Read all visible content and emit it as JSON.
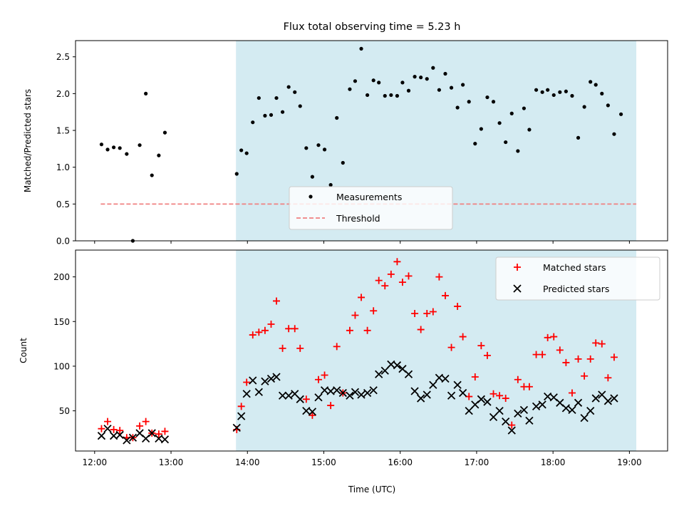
{
  "chart_data": {
    "title": "Flux total observing time = 5.23 h",
    "xlabel": "Time (UTC)",
    "x_ticks": [
      "12:00",
      "13:00",
      "14:00",
      "15:00",
      "16:00",
      "17:00",
      "18:00",
      "19:00"
    ],
    "x_tick_hours": [
      12,
      13,
      14,
      15,
      16,
      17,
      18,
      19
    ],
    "x_range_hours": [
      11.75,
      19.5
    ],
    "observing_window_hours": [
      13.85,
      19.09
    ],
    "shade_color": "#d4ebf2",
    "panels": [
      {
        "type": "scatter",
        "ylabel": "Matched/Predicted stars",
        "ylim": [
          0,
          2.72
        ],
        "y_ticks": [
          "0.0",
          "0.5",
          "1.0",
          "1.5",
          "2.0",
          "2.5"
        ],
        "y_tick_values": [
          0,
          0.5,
          1.0,
          1.5,
          2.0,
          2.5
        ],
        "legend": {
          "position": "lower-center",
          "entries": [
            "Measurements",
            "Threshold"
          ]
        },
        "series": [
          {
            "name": "Measurements",
            "marker": "dot",
            "color": "#000000",
            "points": [
              [
                12.09,
                1.31
              ],
              [
                12.17,
                1.24
              ],
              [
                12.25,
                1.27
              ],
              [
                12.33,
                1.26
              ],
              [
                12.42,
                1.18
              ],
              [
                12.5,
                0.0
              ],
              [
                12.59,
                1.3
              ],
              [
                12.67,
                2.0
              ],
              [
                12.75,
                0.89
              ],
              [
                12.84,
                1.16
              ],
              [
                12.92,
                1.47
              ],
              [
                13.86,
                0.91
              ],
              [
                13.92,
                1.23
              ],
              [
                13.99,
                1.19
              ],
              [
                14.07,
                1.61
              ],
              [
                14.15,
                1.94
              ],
              [
                14.23,
                1.7
              ],
              [
                14.31,
                1.71
              ],
              [
                14.38,
                1.94
              ],
              [
                14.46,
                1.75
              ],
              [
                14.54,
                2.09
              ],
              [
                14.62,
                2.02
              ],
              [
                14.69,
                1.83
              ],
              [
                14.77,
                1.26
              ],
              [
                14.85,
                0.87
              ],
              [
                14.93,
                1.3
              ],
              [
                15.01,
                1.24
              ],
              [
                15.09,
                0.76
              ],
              [
                15.17,
                1.67
              ],
              [
                15.25,
                1.06
              ],
              [
                15.34,
                2.06
              ],
              [
                15.41,
                2.17
              ],
              [
                15.49,
                2.61
              ],
              [
                15.57,
                1.98
              ],
              [
                15.65,
                2.18
              ],
              [
                15.72,
                2.15
              ],
              [
                15.8,
                1.97
              ],
              [
                15.88,
                1.98
              ],
              [
                15.96,
                1.97
              ],
              [
                16.03,
                2.15
              ],
              [
                16.11,
                2.04
              ],
              [
                16.19,
                2.23
              ],
              [
                16.27,
                2.22
              ],
              [
                16.35,
                2.2
              ],
              [
                16.43,
                2.35
              ],
              [
                16.51,
                2.05
              ],
              [
                16.59,
                2.27
              ],
              [
                16.67,
                2.08
              ],
              [
                16.75,
                1.81
              ],
              [
                16.82,
                2.12
              ],
              [
                16.9,
                1.89
              ],
              [
                16.98,
                1.32
              ],
              [
                17.06,
                1.52
              ],
              [
                17.14,
                1.95
              ],
              [
                17.22,
                1.89
              ],
              [
                17.3,
                1.6
              ],
              [
                17.38,
                1.34
              ],
              [
                17.46,
                1.73
              ],
              [
                17.54,
                1.22
              ],
              [
                17.62,
                1.8
              ],
              [
                17.69,
                1.51
              ],
              [
                17.78,
                2.05
              ],
              [
                17.86,
                2.02
              ],
              [
                17.93,
                2.05
              ],
              [
                18.01,
                1.98
              ],
              [
                18.09,
                2.02
              ],
              [
                18.17,
                2.03
              ],
              [
                18.25,
                1.97
              ],
              [
                18.33,
                1.4
              ],
              [
                18.41,
                1.82
              ],
              [
                18.49,
                2.16
              ],
              [
                18.56,
                2.12
              ],
              [
                18.64,
                2.0
              ],
              [
                18.72,
                1.84
              ],
              [
                18.8,
                1.45
              ],
              [
                18.89,
                1.72
              ]
            ]
          },
          {
            "name": "Threshold",
            "marker": "dashed-line",
            "color": "#f08080",
            "x": [
              12.08,
              19.09
            ],
            "y": 0.5
          }
        ]
      },
      {
        "type": "scatter",
        "ylabel": "Count",
        "ylim": [
          5,
          230
        ],
        "y_ticks": [
          "50",
          "100",
          "150",
          "200"
        ],
        "y_tick_values": [
          50,
          100,
          150,
          200
        ],
        "legend": {
          "position": "upper-right",
          "entries": [
            "Matched stars",
            "Predicted stars"
          ]
        },
        "series": [
          {
            "name": "Matched stars",
            "marker": "plus",
            "color": "#ff0000",
            "points": [
              [
                12.09,
                30
              ],
              [
                12.17,
                38
              ],
              [
                12.25,
                29
              ],
              [
                12.33,
                28
              ],
              [
                12.42,
                20
              ],
              [
                12.5,
                20
              ],
              [
                12.59,
                33
              ],
              [
                12.67,
                38
              ],
              [
                12.75,
                25
              ],
              [
                12.84,
                24
              ],
              [
                12.92,
                27
              ],
              [
                13.86,
                29
              ],
              [
                13.92,
                55
              ],
              [
                13.99,
                82
              ],
              [
                14.07,
                135
              ],
              [
                14.15,
                138
              ],
              [
                14.23,
                140
              ],
              [
                14.31,
                147
              ],
              [
                14.38,
                173
              ],
              [
                14.46,
                120
              ],
              [
                14.54,
                142
              ],
              [
                14.62,
                142
              ],
              [
                14.69,
                120
              ],
              [
                14.77,
                63
              ],
              [
                14.85,
                45
              ],
              [
                14.93,
                85
              ],
              [
                15.01,
                90
              ],
              [
                15.09,
                56
              ],
              [
                15.17,
                122
              ],
              [
                15.25,
                70
              ],
              [
                15.34,
                140
              ],
              [
                15.41,
                157
              ],
              [
                15.49,
                177
              ],
              [
                15.57,
                140
              ],
              [
                15.65,
                162
              ],
              [
                15.72,
                196
              ],
              [
                15.8,
                190
              ],
              [
                15.88,
                203
              ],
              [
                15.96,
                217
              ],
              [
                16.03,
                194
              ],
              [
                16.11,
                201
              ],
              [
                16.19,
                159
              ],
              [
                16.27,
                141
              ],
              [
                16.35,
                159
              ],
              [
                16.43,
                161
              ],
              [
                16.51,
                200
              ],
              [
                16.59,
                179
              ],
              [
                16.67,
                121
              ],
              [
                16.75,
                167
              ],
              [
                16.82,
                133
              ],
              [
                16.9,
                66
              ],
              [
                16.98,
                88
              ],
              [
                17.06,
                123
              ],
              [
                17.14,
                112
              ],
              [
                17.22,
                69
              ],
              [
                17.3,
                67
              ],
              [
                17.38,
                64
              ],
              [
                17.46,
                34
              ],
              [
                17.54,
                85
              ],
              [
                17.62,
                77
              ],
              [
                17.69,
                77
              ],
              [
                17.78,
                113
              ],
              [
                17.86,
                113
              ],
              [
                17.93,
                132
              ],
              [
                18.01,
                133
              ],
              [
                18.09,
                118
              ],
              [
                18.17,
                104
              ],
              [
                18.25,
                70
              ],
              [
                18.33,
                108
              ],
              [
                18.41,
                89
              ],
              [
                18.49,
                108
              ],
              [
                18.56,
                126
              ],
              [
                18.64,
                125
              ],
              [
                18.72,
                87
              ],
              [
                18.8,
                110
              ]
            ]
          },
          {
            "name": "Predicted stars",
            "marker": "x",
            "color": "#000000",
            "points": [
              [
                12.09,
                22
              ],
              [
                12.17,
                30
              ],
              [
                12.25,
                22
              ],
              [
                12.33,
                23
              ],
              [
                12.42,
                17
              ],
              [
                12.5,
                20
              ],
              [
                12.59,
                25
              ],
              [
                12.67,
                19
              ],
              [
                12.75,
                25
              ],
              [
                12.84,
                19
              ],
              [
                12.92,
                18
              ],
              [
                13.86,
                31
              ],
              [
                13.92,
                44
              ],
              [
                13.99,
                69
              ],
              [
                14.07,
                84
              ],
              [
                14.15,
                71
              ],
              [
                14.23,
                83
              ],
              [
                14.31,
                86
              ],
              [
                14.38,
                88
              ],
              [
                14.46,
                67
              ],
              [
                14.54,
                67
              ],
              [
                14.62,
                69
              ],
              [
                14.69,
                63
              ],
              [
                14.77,
                50
              ],
              [
                14.85,
                49
              ],
              [
                14.93,
                65
              ],
              [
                15.01,
                73
              ],
              [
                15.09,
                72
              ],
              [
                15.17,
                73
              ],
              [
                15.25,
                70
              ],
              [
                15.34,
                67
              ],
              [
                15.41,
                71
              ],
              [
                15.49,
                68
              ],
              [
                15.57,
                70
              ],
              [
                15.65,
                73
              ],
              [
                15.72,
                91
              ],
              [
                15.8,
                95
              ],
              [
                15.88,
                102
              ],
              [
                15.96,
                101
              ],
              [
                16.03,
                97
              ],
              [
                16.11,
                91
              ],
              [
                16.19,
                72
              ],
              [
                16.27,
                64
              ],
              [
                16.35,
                68
              ],
              [
                16.43,
                79
              ],
              [
                16.51,
                87
              ],
              [
                16.59,
                86
              ],
              [
                16.67,
                67
              ],
              [
                16.75,
                79
              ],
              [
                16.82,
                70
              ],
              [
                16.9,
                50
              ],
              [
                16.98,
                57
              ],
              [
                17.06,
                63
              ],
              [
                17.14,
                60
              ],
              [
                17.22,
                43
              ],
              [
                17.3,
                50
              ],
              [
                17.38,
                38
              ],
              [
                17.46,
                28
              ],
              [
                17.54,
                47
              ],
              [
                17.62,
                51
              ],
              [
                17.69,
                39
              ],
              [
                17.78,
                55
              ],
              [
                17.86,
                57
              ],
              [
                17.93,
                66
              ],
              [
                18.01,
                65
              ],
              [
                18.09,
                59
              ],
              [
                18.17,
                53
              ],
              [
                18.25,
                51
              ],
              [
                18.33,
                59
              ],
              [
                18.41,
                42
              ],
              [
                18.49,
                50
              ],
              [
                18.56,
                64
              ],
              [
                18.64,
                68
              ],
              [
                18.72,
                61
              ],
              [
                18.8,
                64
              ]
            ]
          }
        ]
      }
    ]
  }
}
